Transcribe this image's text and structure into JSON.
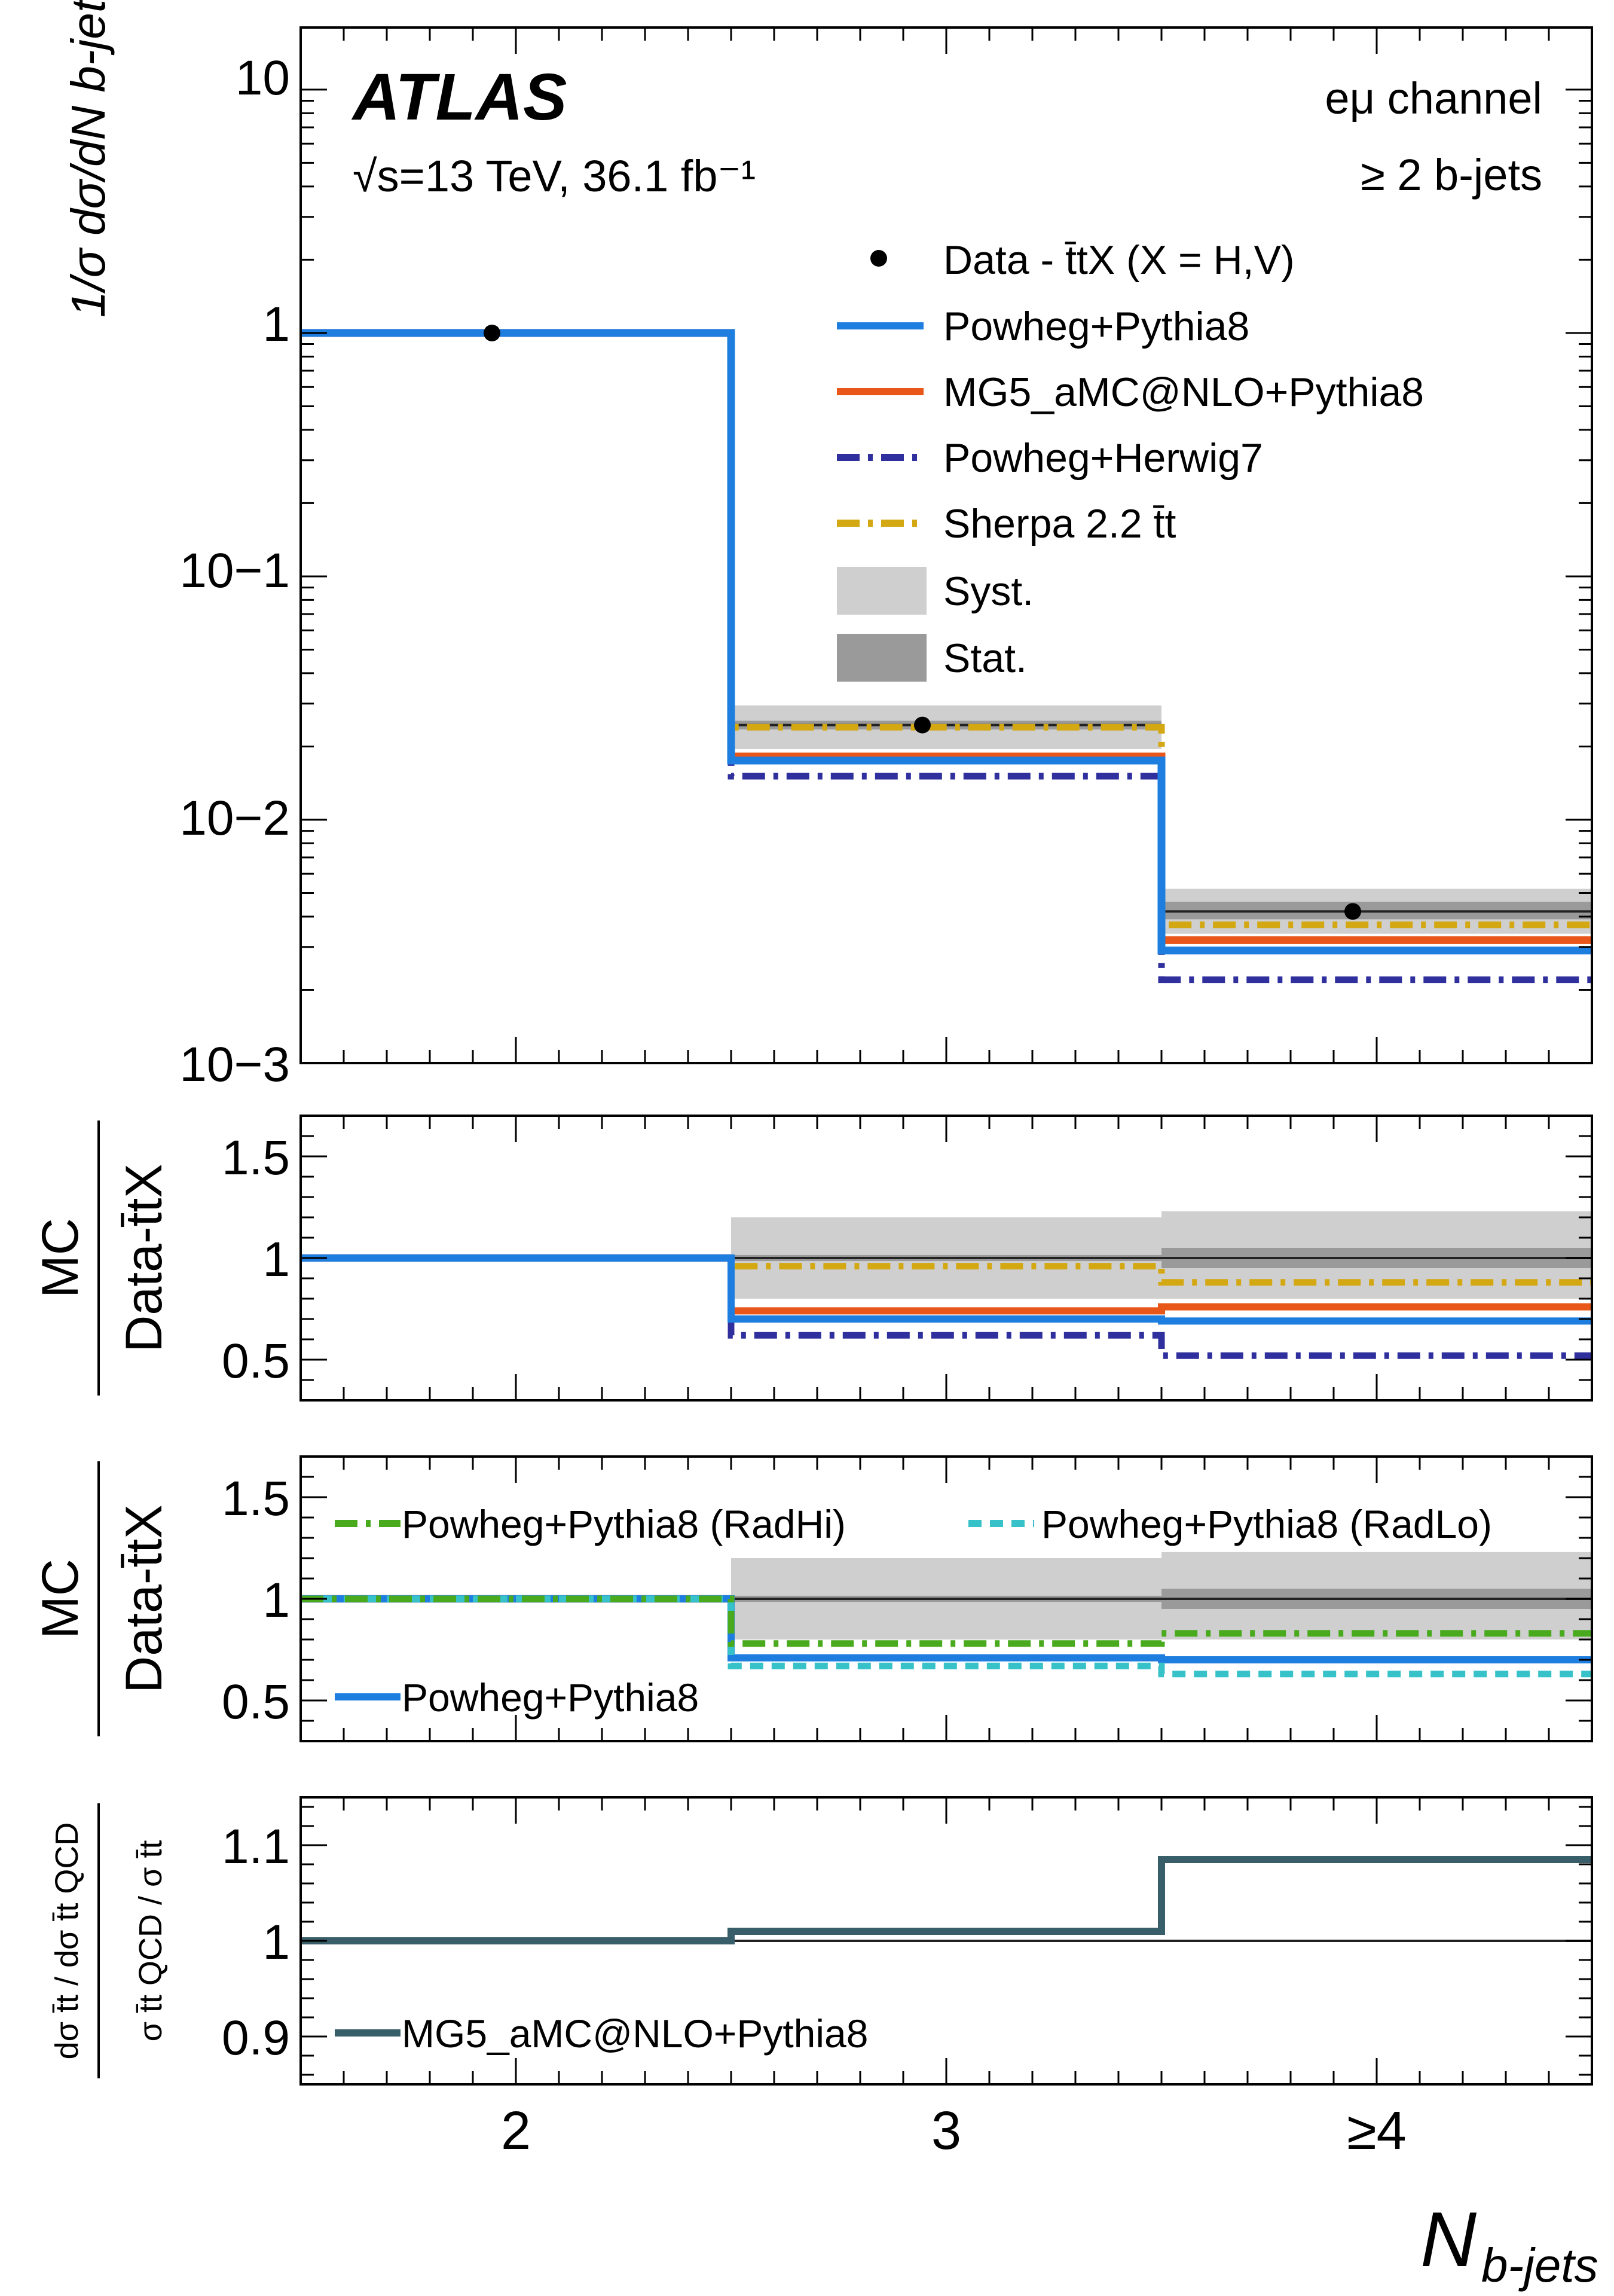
{
  "chart_data": [
    {
      "type": "line",
      "panel": "main",
      "title": "",
      "x_categories": [
        "2",
        "3",
        "≥4"
      ],
      "xlim": [
        1.5,
        4.5
      ],
      "yscale": "log",
      "ylim": [
        0.001,
        18
      ],
      "y_ticks": [
        "10",
        "1",
        "10−1",
        "10−2",
        "10−3"
      ],
      "atlas_label": "ATLAS",
      "energy_label": "√s=13 TeV, 36.1 fb⁻¹",
      "channel_label": "eμ channel",
      "selection_label": "≥ 2 b-jets",
      "data": {
        "name": "Data - t̄tX (X = H,V)",
        "values": [
          1.0,
          0.0245,
          0.0042
        ],
        "syst_band": [
          [
            0.97,
            1.03
          ],
          [
            0.0195,
            0.0295
          ],
          [
            0.0034,
            0.0052
          ]
        ],
        "stat_band": [
          [
            0.99,
            1.01
          ],
          [
            0.0235,
            0.0255
          ],
          [
            0.0039,
            0.0046
          ]
        ]
      },
      "series": [
        {
          "name": "Powheg+Pythia8",
          "values": [
            1.0,
            0.0175,
            0.0029
          ],
          "color": "#1e7ee0",
          "style": "solid"
        },
        {
          "name": "MG5_aMC@NLO+Pythia8",
          "values": [
            1.0,
            0.0182,
            0.0032
          ],
          "color": "#e8561a",
          "style": "solid"
        },
        {
          "name": "Powheg+Herwig7",
          "values": [
            1.0,
            0.0151,
            0.0022
          ],
          "color": "#2f2f9e",
          "style": "dashdot"
        },
        {
          "name": "Sherpa 2.2 t̄t",
          "values": [
            1.0,
            0.024,
            0.0037
          ],
          "color": "#d4a812",
          "style": "dashdot"
        }
      ],
      "legend_extra": [
        "Syst.",
        "Stat."
      ],
      "ylabel": "1/σ dσ/dN b-jet"
    },
    {
      "type": "line",
      "panel": "ratio1",
      "ylim": [
        0.3,
        1.7
      ],
      "y_ticks": [
        "1.5",
        "1",
        "0.5"
      ],
      "ylabel_top": "MC",
      "ylabel_bottom": "Data-t̄tX",
      "data_band": {
        "syst": [
          [
            0.98,
            1.02
          ],
          [
            0.8,
            1.2
          ],
          [
            0.8,
            1.23
          ]
        ],
        "stat": [
          [
            0.995,
            1.005
          ],
          [
            0.985,
            1.015
          ],
          [
            0.95,
            1.05
          ]
        ]
      },
      "series": [
        {
          "name": "Powheg+Pythia8",
          "values": [
            1.0,
            0.7,
            0.69
          ],
          "color": "#1e7ee0",
          "style": "solid"
        },
        {
          "name": "MG5_aMC@NLO+Pythia8",
          "values": [
            1.0,
            0.74,
            0.76
          ],
          "color": "#e8561a",
          "style": "solid"
        },
        {
          "name": "Powheg+Herwig7",
          "values": [
            1.0,
            0.62,
            0.52
          ],
          "color": "#2f2f9e",
          "style": "dashdot"
        },
        {
          "name": "Sherpa 2.2 t̄t",
          "values": [
            1.0,
            0.96,
            0.88
          ],
          "color": "#d4a812",
          "style": "dashdot"
        }
      ]
    },
    {
      "type": "line",
      "panel": "ratio2",
      "ylim": [
        0.3,
        1.7
      ],
      "y_ticks": [
        "1.5",
        "1",
        "0.5"
      ],
      "ylabel_top": "MC",
      "ylabel_bottom": "Data-t̄tX",
      "data_band": {
        "syst": [
          [
            0.98,
            1.02
          ],
          [
            0.8,
            1.2
          ],
          [
            0.8,
            1.23
          ]
        ],
        "stat": [
          [
            0.995,
            1.005
          ],
          [
            0.985,
            1.015
          ],
          [
            0.95,
            1.05
          ]
        ]
      },
      "series": [
        {
          "name": "Powheg+Pythia8 (RadHi)",
          "values": [
            1.0,
            0.78,
            0.83
          ],
          "color": "#4aaa1e",
          "style": "dashdot"
        },
        {
          "name": "Powheg+Pythia8 (RadLo)",
          "values": [
            1.0,
            0.67,
            0.63
          ],
          "color": "#36c2c8",
          "style": "dashed"
        },
        {
          "name": "Powheg+Pythia8",
          "values": [
            1.0,
            0.71,
            0.7
          ],
          "color": "#1e7ee0",
          "style": "solid"
        }
      ]
    },
    {
      "type": "line",
      "panel": "ratio3",
      "ylim": [
        0.85,
        1.15
      ],
      "y_ticks": [
        "1.1",
        "1",
        "0.9"
      ],
      "ylabel_top": "dσ t̄t / dσ t̄t QCD",
      "ylabel_bottom": "σ t̄t QCD / σ t̄t",
      "series": [
        {
          "name": "MG5_aMC@NLO+Pythia8",
          "values": [
            1.0,
            1.01,
            1.085
          ],
          "color": "#385e6a",
          "style": "solid"
        }
      ]
    }
  ],
  "xaxis": {
    "ticks": [
      "2",
      "3",
      "≥4"
    ],
    "label": "N",
    "label_sub": "b-jets"
  }
}
